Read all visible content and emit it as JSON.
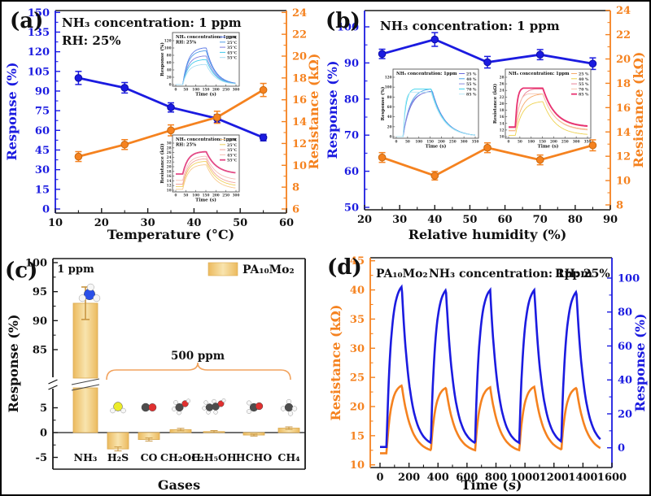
{
  "colors": {
    "blue": "#1b1be0",
    "blue_dark": "#0d0da8",
    "orange": "#f5821f",
    "orange_dark": "#c96a10",
    "black": "#111111",
    "bar_gold": "#ecba5e",
    "bar_gold_light": "#f8e4ae",
    "bar_edge": "#d9a84e",
    "error_gold": "#c89540",
    "brace": "#f2a35e"
  },
  "chart_data": [
    {
      "id": "a",
      "type": "line",
      "panel_label": "(a)",
      "annotations": [
        "NH₃ concentration: 1 ppm",
        "RH: 25%"
      ],
      "xlabel": "Temperature (°C)",
      "xlim": [
        10,
        60
      ],
      "xticks": [
        10,
        20,
        30,
        40,
        50,
        60
      ],
      "axes": {
        "left": {
          "label": "Response (%)",
          "color": "blue",
          "lim": [
            0,
            150
          ],
          "ticks": [
            0,
            15,
            30,
            45,
            60,
            75,
            90,
            105,
            120,
            135,
            150
          ]
        },
        "right": {
          "label": "Resistance (kΩ)",
          "color": "orange",
          "lim": [
            6,
            24
          ],
          "ticks": [
            6,
            8,
            10,
            12,
            14,
            16,
            18,
            20,
            22,
            24
          ]
        }
      },
      "x": [
        15,
        25,
        35,
        45,
        55
      ],
      "series": [
        {
          "name": "Response",
          "axis": "left",
          "color": "blue",
          "values": [
            100,
            92.5,
            77.5,
            69,
            54.5
          ],
          "errors": [
            5,
            4,
            3.5,
            3,
            2.5
          ]
        },
        {
          "name": "Resistance",
          "axis": "right",
          "color": "orange",
          "values": [
            10.8,
            11.9,
            13.2,
            14.4,
            16.9
          ],
          "errors": [
            0.45,
            0.45,
            0.5,
            0.55,
            0.6
          ]
        }
      ],
      "insets": [
        {
          "title": "NH₃ concentration: 1ppm",
          "subtitle": "RH: 25%",
          "ylabel": "Response (%)",
          "xlabel": "Time (s)",
          "ylim": [
            0,
            120
          ],
          "yticks": [
            0,
            20,
            40,
            60,
            80,
            100,
            120
          ],
          "xlim": [
            0,
            300
          ],
          "xticks": [
            0,
            50,
            100,
            150,
            200,
            250,
            300
          ],
          "t0": 35,
          "tp": 140,
          "hold": 152,
          "tau": 45,
          "curves": [
            {
              "label": "15°C",
              "color": "#5b79e6",
              "base": 0,
              "peak": 100
            },
            {
              "label": "25°C",
              "color": "#4f9ce8",
              "base": 0,
              "peak": 92
            },
            {
              "label": "35°C",
              "color": "#7f7fe0",
              "base": 0,
              "peak": 78
            },
            {
              "label": "45°C",
              "color": "#3fc9ec",
              "base": 0,
              "peak": 68
            },
            {
              "label": "55°C",
              "color": "#a9ddf3",
              "base": 0,
              "peak": 55
            }
          ]
        },
        {
          "title": "NH₃ concentration: 1ppm",
          "subtitle": "RH: 25%",
          "ylabel": "Resistance (kΩ)",
          "xlabel": "Time (s)",
          "ylim": [
            10,
            30
          ],
          "yticks": [
            10,
            12,
            14,
            16,
            18,
            20,
            22,
            24,
            26,
            28,
            30
          ],
          "xlim": [
            0,
            300
          ],
          "xticks": [
            0,
            50,
            100,
            150,
            200,
            250,
            300
          ],
          "t0": 35,
          "tp": 140,
          "hold": 152,
          "tau": 50,
          "curves": [
            {
              "label": "15°C",
              "color": "#f8c98c",
              "base": 10.4,
              "peak": 20.8
            },
            {
              "label": "25°C",
              "color": "#f0d05c",
              "base": 11.6,
              "peak": 22.2
            },
            {
              "label": "35°C",
              "color": "#f2a49b",
              "base": 12.6,
              "peak": 23.3
            },
            {
              "label": "45°C",
              "color": "#f6bdb3",
              "base": 14.2,
              "peak": 24.4
            },
            {
              "label": "55°C",
              "color": "#e34a86",
              "base": 16.9,
              "peak": 26.3,
              "lw": 1.8
            }
          ]
        }
      ]
    },
    {
      "id": "b",
      "type": "line",
      "panel_label": "(b)",
      "annotations": [
        "NH₃ concentration: 1 ppm"
      ],
      "xlabel": "Relative humidity (%)",
      "xlim": [
        20,
        90
      ],
      "xticks": [
        20,
        30,
        40,
        50,
        60,
        70,
        80,
        90
      ],
      "axes": {
        "left": {
          "label": "Response (%)",
          "color": "blue",
          "lim": [
            50,
            100
          ],
          "ticks": [
            50,
            60,
            70,
            80,
            90,
            100
          ]
        },
        "right": {
          "label": "Resistance (kΩ)",
          "color": "orange",
          "lim": [
            8,
            24
          ],
          "ticks": [
            8,
            10,
            12,
            14,
            16,
            18,
            20,
            22,
            24
          ]
        }
      },
      "x": [
        25,
        40,
        55,
        70,
        85
      ],
      "series": [
        {
          "name": "Response",
          "axis": "left",
          "color": "blue",
          "values": [
            92.5,
            96.5,
            90.2,
            92.3,
            89.8
          ],
          "errors": [
            1.3,
            1.9,
            1.6,
            1.4,
            1.6
          ]
        },
        {
          "name": "Resistance",
          "axis": "right",
          "color": "orange",
          "values": [
            11.9,
            10.4,
            12.7,
            11.7,
            12.9
          ],
          "errors": [
            0.4,
            0.35,
            0.4,
            0.4,
            0.45
          ]
        }
      ],
      "insets": [
        {
          "title": "NH₃ concentration: 1ppm",
          "ylabel": "Response (%)",
          "xlabel": "Time (s)",
          "ylim": [
            0,
            120
          ],
          "yticks": [
            0,
            20,
            40,
            60,
            80,
            100,
            120
          ],
          "xlim": [
            0,
            350
          ],
          "xticks": [
            0,
            50,
            100,
            150,
            200,
            250,
            300,
            350
          ],
          "t0": 30,
          "tp": 150,
          "hold": 155,
          "tau": 55,
          "curves": [
            {
              "label": "25 %",
              "color": "#6b6bdc",
              "base": 0,
              "peak": 92,
              "tp": 160
            },
            {
              "label": "40 %",
              "color": "#49a4e8",
              "base": 0,
              "peak": 96,
              "tp": 150
            },
            {
              "label": "55 %",
              "color": "#8b8bde",
              "base": 0,
              "peak": 90,
              "tp": 145
            },
            {
              "label": "70 %",
              "color": "#38d2ec",
              "base": 0,
              "peak": 96,
              "tp": 80
            },
            {
              "label": "85 %",
              "color": "#b7e9f6",
              "base": 0,
              "peak": 90,
              "tp": 65
            }
          ]
        },
        {
          "title": "NH₃ concentration: 1ppm",
          "ylabel": "Resistance (kΩ)",
          "xlabel": "Time (s)",
          "ylim": [
            10,
            28
          ],
          "yticks": [
            10,
            12,
            14,
            16,
            18,
            20,
            22,
            24,
            26,
            28
          ],
          "xlim": [
            0,
            350
          ],
          "xticks": [
            0,
            50,
            100,
            150,
            200,
            250,
            300,
            350
          ],
          "t0": 30,
          "tp": 150,
          "hold": 152,
          "tau": 55,
          "curves": [
            {
              "label": "25 %",
              "color": "#f6ab6b",
              "base": 11.9,
              "peak": 22.9,
              "tp": 150
            },
            {
              "label": "40 %",
              "color": "#eed24f",
              "base": 10.4,
              "peak": 20.6,
              "tp": 150
            },
            {
              "label": "55 %",
              "color": "#e87f95",
              "base": 12.7,
              "peak": 24.4,
              "tp": 115
            },
            {
              "label": "70 %",
              "color": "#f6c4ae",
              "base": 11.7,
              "peak": 23.0,
              "tp": 90
            },
            {
              "label": "85 %",
              "color": "#e83372",
              "base": 12.9,
              "peak": 24.7,
              "tp": 65,
              "lw": 1.8
            }
          ]
        }
      ]
    },
    {
      "id": "c",
      "type": "bar",
      "panel_label": "(c)",
      "ylabel": "Response (%)",
      "xlabel": "Gases",
      "categories": [
        "NH₃",
        "H₂S",
        "CO",
        "CH₂OH",
        "C₂H₅OH",
        "HCHO",
        "CH₄"
      ],
      "values": [
        93,
        -3.3,
        -1.4,
        0.6,
        0.2,
        -0.5,
        0.9
      ],
      "errors": [
        2.8,
        0.4,
        0.3,
        0.25,
        0.2,
        0.2,
        0.25
      ],
      "upper_lim": [
        85,
        100
      ],
      "upper_ticks": [
        85,
        90,
        95,
        100
      ],
      "lower_lim": [
        -5,
        5
      ],
      "lower_ticks": [
        -5,
        0,
        5
      ],
      "legend_label": "PA₁₀Mo₂",
      "conc_nh3": "1 ppm",
      "conc_others": "500 ppm",
      "molecule_icons": [
        "nh3",
        "h2s",
        "co",
        "ch3oh",
        "c2h5oh",
        "hcho",
        "ch4"
      ]
    },
    {
      "id": "d",
      "type": "cycles",
      "panel_label": "(d)",
      "annotations": [
        "PA₁₀Mo₂",
        "NH₃ concentration: 1ppm",
        "RH: 25%"
      ],
      "xlabel": "Time (s)",
      "xlim": [
        0,
        1600
      ],
      "xticks": [
        0,
        200,
        400,
        600,
        800,
        1000,
        1200,
        1400,
        1600
      ],
      "axes": {
        "left": {
          "label": "Resistance (kΩ)",
          "color": "orange",
          "lim": [
            10,
            45
          ],
          "ticks": [
            10,
            15,
            20,
            25,
            30,
            35,
            40,
            45
          ]
        },
        "right": {
          "label": "Response (%)",
          "color": "blue",
          "lim": [
            0,
            100
          ],
          "ticks": [
            0,
            20,
            40,
            60,
            80,
            100
          ]
        }
      },
      "cycles": {
        "on_times": [
          45,
          350,
          655,
          960,
          1250
        ],
        "rise_s": 105,
        "t_end": 1520,
        "series": [
          {
            "name": "Resistance",
            "axis": "left",
            "color": "orange",
            "baseline": 12,
            "peaks": [
              23.6,
              23.2,
              23.3,
              23.4,
              23.2
            ],
            "tau": 65
          },
          {
            "name": "Response",
            "axis": "right",
            "color": "blue",
            "baseline": 0.5,
            "peaks": [
              95,
              93,
              93,
              93,
              92
            ],
            "tau": 55
          }
        ]
      }
    }
  ]
}
